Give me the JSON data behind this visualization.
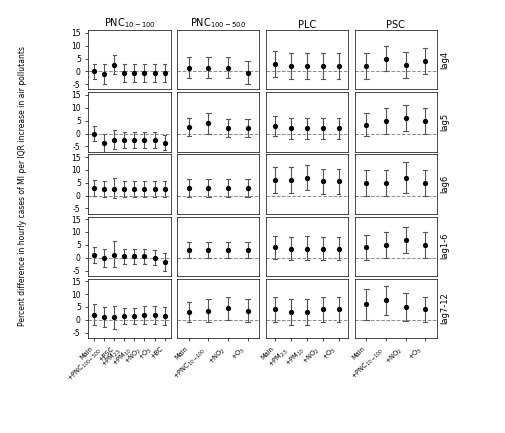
{
  "col_titles": [
    "PNC$_{10-100}$",
    "PNC$_{100-500}$",
    "PLC",
    "PSC"
  ],
  "row_labels": [
    "lag4",
    "lag5",
    "lag6",
    "lag1-6",
    "lag7-12"
  ],
  "ylabel": "Percent difference in hourly cases of MI per IQR increase in air pollutants",
  "ylim": [
    -7,
    16
  ],
  "yticks": [
    -5,
    0,
    5,
    10,
    15
  ],
  "col_xlabels": [
    [
      "Main",
      "+PNC$_{100-500}$",
      "+PSC",
      "+PM$_{2.5}$",
      "+PM$_{10}$",
      "+NO$_2$",
      "+O$_3$",
      "+BC"
    ],
    [
      "Main",
      "+PNC$_{10-100}$",
      "+NO$_2$",
      "+O$_3$"
    ],
    [
      "Main",
      "+PM$_{2.5}$",
      "+PM$_{10}$",
      "+NO$_2$",
      "+O$_3$"
    ],
    [
      "Main",
      "+PNC$_{10-100}$",
      "+NO$_2$",
      "+O$_3$"
    ]
  ],
  "data": {
    "PNC10100": {
      "lag4": {
        "centers": [
          0,
          -1,
          2.5,
          -0.5,
          -0.5,
          -0.5,
          -0.5,
          -0.5
        ],
        "lo": [
          -3,
          -5,
          -1,
          -4,
          -4,
          -4,
          -4,
          -4
        ],
        "hi": [
          3,
          3,
          6.5,
          3,
          3,
          3,
          3,
          3
        ]
      },
      "lag5": {
        "centers": [
          0,
          -3.5,
          -2.5,
          -2.5,
          -2.5,
          -2.5,
          -2.5,
          -3.5
        ],
        "lo": [
          -3,
          -7,
          -6,
          -5.5,
          -5.5,
          -5.5,
          -5.5,
          -6.5
        ],
        "hi": [
          3,
          0,
          1.5,
          0.5,
          0.5,
          0.5,
          0.5,
          -0.5
        ]
      },
      "lag6": {
        "centers": [
          3,
          2.5,
          2.5,
          2.5,
          2.5,
          2.5,
          2.5,
          2.5
        ],
        "lo": [
          0,
          -0.5,
          -1,
          -0.5,
          -0.5,
          -0.5,
          -0.5,
          -0.5
        ],
        "hi": [
          6,
          5.5,
          7,
          5.5,
          5.5,
          5.5,
          5.5,
          5.5
        ]
      },
      "lag16": {
        "centers": [
          1,
          0,
          1,
          0.5,
          0.5,
          0.5,
          0,
          -1.5
        ],
        "lo": [
          -2,
          -3.5,
          -3.5,
          -2.5,
          -2.5,
          -2.5,
          -3,
          -5
        ],
        "hi": [
          4,
          3.5,
          6.5,
          3.5,
          3.5,
          3.5,
          3,
          2
        ]
      },
      "lag712": {
        "centers": [
          2,
          1,
          1,
          1.5,
          1.5,
          2,
          2,
          1.5
        ],
        "lo": [
          -2,
          -3,
          -3.5,
          -1.5,
          -1.5,
          -1.5,
          -1.5,
          -2
        ],
        "hi": [
          6,
          5,
          5.5,
          4.5,
          4.5,
          5.5,
          5.5,
          5
        ]
      }
    },
    "PNC100500": {
      "lag4": {
        "centers": [
          1.5,
          1.5,
          1.5,
          -0.5
        ],
        "lo": [
          -2.5,
          -2.5,
          -2.5,
          -5
        ],
        "hi": [
          5.5,
          5.5,
          5.5,
          4
        ]
      },
      "lag5": {
        "centers": [
          2.5,
          4,
          2,
          2
        ],
        "lo": [
          -1,
          0,
          -1.5,
          -1.5
        ],
        "hi": [
          6,
          8,
          5.5,
          5.5
        ]
      },
      "lag6": {
        "centers": [
          3,
          3,
          3,
          3
        ],
        "lo": [
          -0.5,
          -0.5,
          -0.5,
          -0.5
        ],
        "hi": [
          6.5,
          6.5,
          6.5,
          6.5
        ]
      },
      "lag16": {
        "centers": [
          3,
          3,
          3,
          3
        ],
        "lo": [
          0,
          0,
          0,
          0
        ],
        "hi": [
          6,
          6,
          6,
          6
        ]
      },
      "lag712": {
        "centers": [
          3,
          3.5,
          4.5,
          3.5
        ],
        "lo": [
          -1,
          -1,
          0,
          -1
        ],
        "hi": [
          7,
          8,
          9,
          8
        ]
      }
    },
    "PLC": {
      "lag4": {
        "centers": [
          3,
          2,
          2,
          2,
          2
        ],
        "lo": [
          -2,
          -3,
          -3,
          -3,
          -3
        ],
        "hi": [
          8,
          7,
          7,
          7,
          7
        ]
      },
      "lag5": {
        "centers": [
          3,
          2,
          2,
          2,
          2
        ],
        "lo": [
          -1,
          -2,
          -2,
          -2,
          -2
        ],
        "hi": [
          7,
          6,
          6,
          6,
          6
        ]
      },
      "lag6": {
        "centers": [
          6,
          6,
          7,
          5.5,
          5.5
        ],
        "lo": [
          1,
          1,
          2,
          0.5,
          0.5
        ],
        "hi": [
          11,
          11,
          12,
          10.5,
          10.5
        ]
      },
      "lag16": {
        "centers": [
          4,
          3.5,
          3.5,
          3.5,
          3.5
        ],
        "lo": [
          -0.5,
          -1,
          -1,
          -1,
          -1
        ],
        "hi": [
          8.5,
          8,
          8.5,
          8,
          8
        ]
      },
      "lag712": {
        "centers": [
          4,
          3,
          3,
          4,
          4
        ],
        "lo": [
          -1,
          -2,
          -2,
          -1,
          -1
        ],
        "hi": [
          9,
          8,
          8,
          9,
          9
        ]
      }
    },
    "PSC": {
      "lag4": {
        "centers": [
          2,
          5,
          2.5,
          4
        ],
        "lo": [
          -3,
          0,
          -2.5,
          -1
        ],
        "hi": [
          7,
          10,
          7.5,
          9
        ]
      },
      "lag5": {
        "centers": [
          3.5,
          5,
          6,
          5
        ],
        "lo": [
          -1,
          0,
          1,
          0
        ],
        "hi": [
          8,
          10,
          11,
          10
        ]
      },
      "lag6": {
        "centers": [
          5,
          5,
          7,
          5
        ],
        "lo": [
          0,
          0,
          1,
          0
        ],
        "hi": [
          10,
          10,
          13,
          10
        ]
      },
      "lag16": {
        "centers": [
          4,
          5,
          7,
          5
        ],
        "lo": [
          -1,
          0,
          2,
          0
        ],
        "hi": [
          9,
          10,
          12,
          10
        ]
      },
      "lag712": {
        "centers": [
          6,
          7.5,
          5,
          4
        ],
        "lo": [
          0,
          2,
          -0.5,
          -1
        ],
        "hi": [
          12,
          13,
          10.5,
          9
        ]
      }
    }
  }
}
